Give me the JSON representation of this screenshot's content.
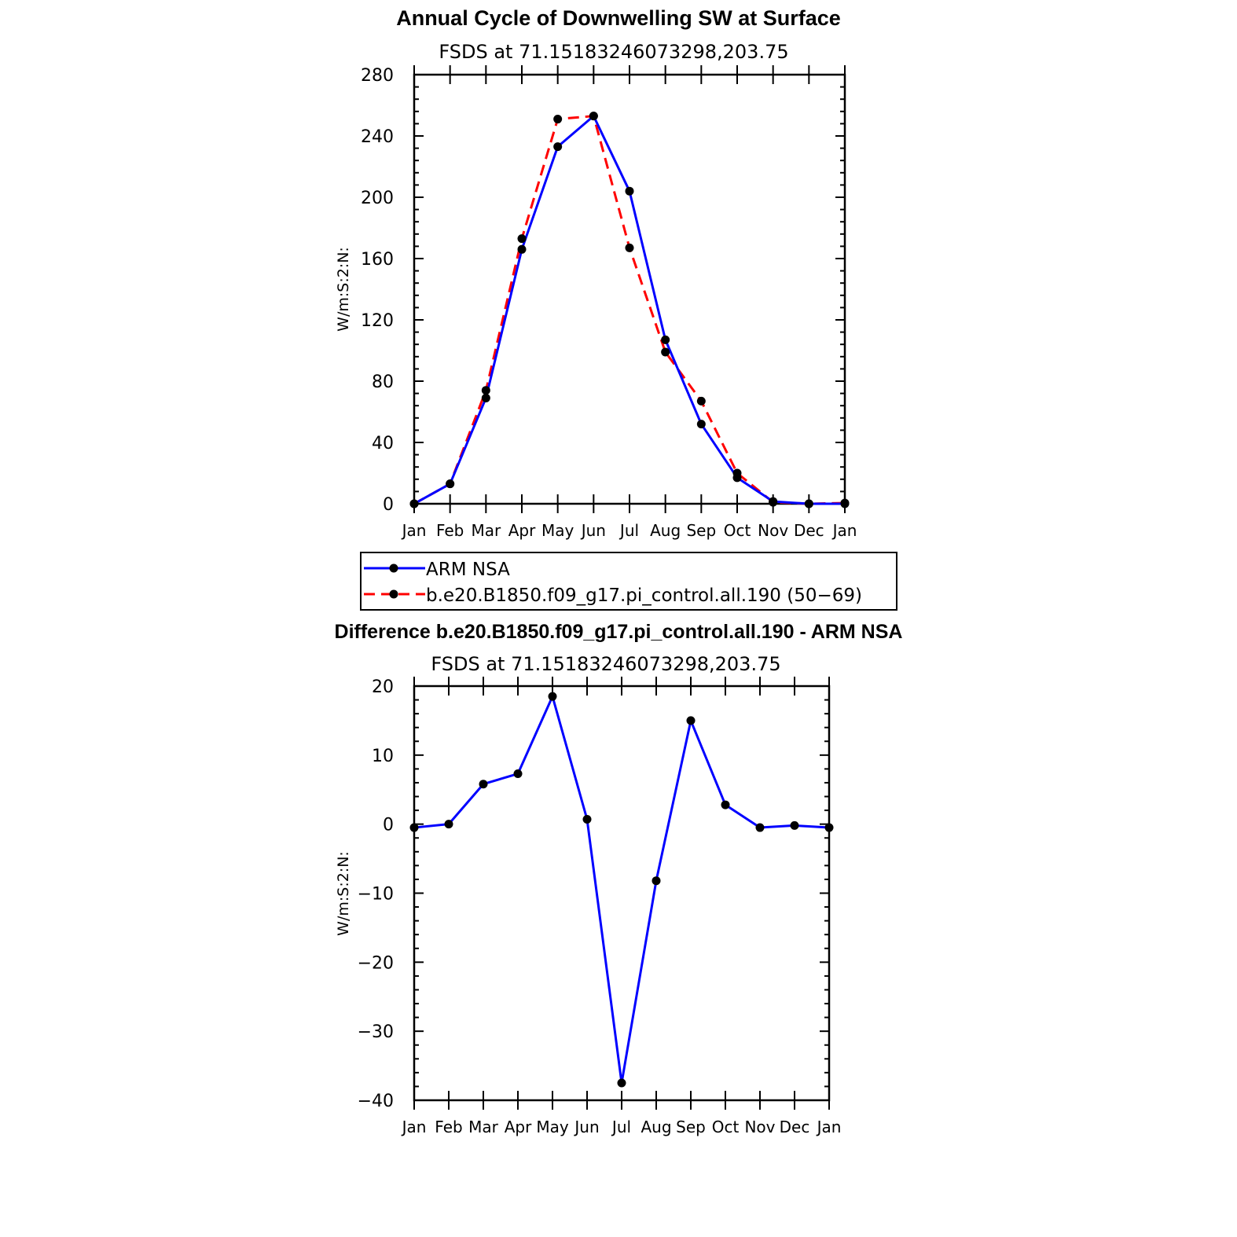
{
  "chart_data": [
    {
      "type": "line",
      "title": "Annual Cycle of Downwelling SW at Surface",
      "subtitle": "FSDS at 71.15183246073298,203.75",
      "xlabel": "",
      "ylabel": "W/m:S:2:N:",
      "categories": [
        "Jan",
        "Feb",
        "Mar",
        "Apr",
        "May",
        "Jun",
        "Jul",
        "Aug",
        "Sep",
        "Oct",
        "Nov",
        "Dec",
        "Jan"
      ],
      "ylim": [
        0,
        280
      ],
      "yticks": [
        0,
        40,
        80,
        120,
        160,
        200,
        240,
        280
      ],
      "series": [
        {
          "name": "ARM NSA",
          "color": "#0000ff",
          "dash": "solid",
          "values": [
            0,
            13,
            69,
            166,
            233,
            253,
            204,
            107,
            52,
            17,
            1.5,
            0,
            0
          ]
        },
        {
          "name": "b.e20.B1850.f09_g17.pi_control.all.190 (50−69)",
          "color": "#ff0000",
          "dash": "dashed",
          "values": [
            0,
            13,
            74,
            173,
            251,
            253,
            167,
            99,
            67,
            20,
            1,
            0,
            0.5
          ]
        }
      ],
      "legend_position": "below"
    },
    {
      "type": "line",
      "title": "Difference b.e20.B1850.f09_g17.pi_control.all.190 - ARM NSA",
      "subtitle": "FSDS at 71.15183246073298,203.75",
      "xlabel": "",
      "ylabel": "W/m:S:2:N:",
      "categories": [
        "Jan",
        "Feb",
        "Mar",
        "Apr",
        "May",
        "Jun",
        "Jul",
        "Aug",
        "Sep",
        "Oct",
        "Nov",
        "Dec",
        "Jan"
      ],
      "ylim": [
        -40,
        20
      ],
      "yticks": [
        -40,
        -30,
        -20,
        -10,
        0,
        10,
        20
      ],
      "ytick_labels": [
        "−40",
        "−30",
        "−20",
        "−10",
        "0",
        "10",
        "20"
      ],
      "series": [
        {
          "color": "#0000ff",
          "dash": "solid",
          "values": [
            -0.5,
            0,
            5.8,
            7.3,
            18.5,
            0.7,
            -37.5,
            -8.2,
            15,
            2.8,
            -0.5,
            -0.2,
            -0.5
          ]
        }
      ]
    }
  ]
}
